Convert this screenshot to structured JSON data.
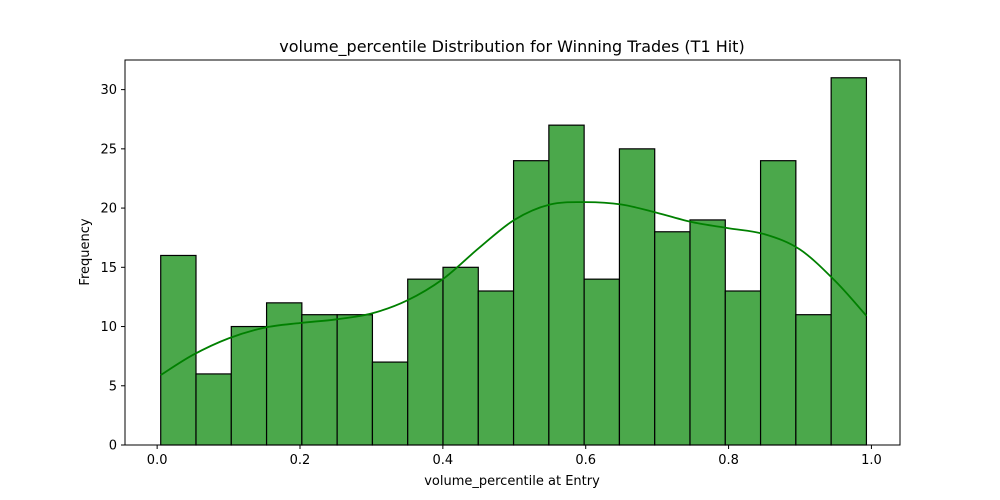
{
  "chart_data": {
    "type": "bar",
    "title": "volume_percentile Distribution for Winning Trades (T1 Hit)",
    "xlabel": "volume_percentile at Entry",
    "ylabel": "Frequency",
    "xlim": [
      -0.045,
      1.04
    ],
    "ylim": [
      0,
      32.5
    ],
    "xticks": [
      0.0,
      0.2,
      0.4,
      0.6,
      0.8,
      1.0
    ],
    "xtick_labels": [
      "0.0",
      "0.2",
      "0.4",
      "0.6",
      "0.8",
      "1.0"
    ],
    "yticks": [
      0,
      5,
      10,
      15,
      20,
      25,
      30
    ],
    "ytick_labels": [
      "0",
      "5",
      "10",
      "15",
      "20",
      "25",
      "30"
    ],
    "grid": false,
    "bin_start": 0.005,
    "bin_width": 0.0494,
    "counts": [
      16,
      6,
      10,
      12,
      11,
      11,
      7,
      14,
      15,
      13,
      24,
      27,
      14,
      25,
      18,
      19,
      13,
      24,
      11,
      31
    ],
    "bar_color": "#4ba84b",
    "kde_color": "#008000",
    "kde": {
      "x": [
        0.005,
        0.05,
        0.1,
        0.15,
        0.2,
        0.25,
        0.3,
        0.35,
        0.4,
        0.45,
        0.5,
        0.55,
        0.6,
        0.65,
        0.7,
        0.75,
        0.8,
        0.85,
        0.9,
        0.95,
        0.993
      ],
      "y": [
        5.9,
        7.6,
        9.0,
        9.9,
        10.3,
        10.6,
        11.1,
        12.2,
        14.0,
        16.6,
        19.0,
        20.3,
        20.5,
        20.3,
        19.6,
        18.8,
        18.3,
        17.8,
        16.5,
        13.8,
        10.9
      ]
    }
  }
}
